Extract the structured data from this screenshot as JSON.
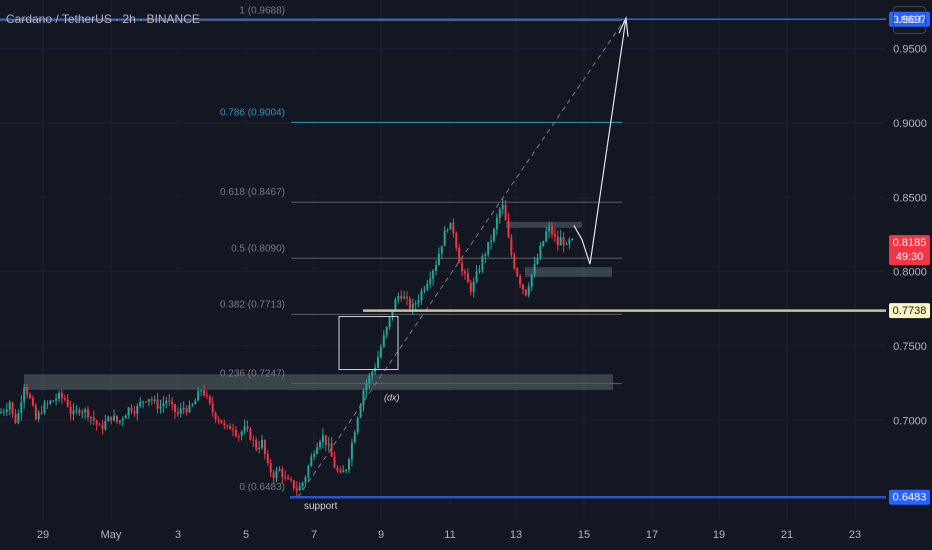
{
  "header": {
    "title": "Cardano / TetherUS · 2h · BINANCE",
    "currency_button": "USDT"
  },
  "chart_data": {
    "type": "candlestick",
    "title": "Cardano / TetherUS · 2h · BINANCE",
    "x_axis": {
      "tick_labels": [
        "29",
        "May",
        "3",
        "5",
        "7",
        "9",
        "11",
        "13",
        "15",
        "17",
        "19",
        "21",
        "23"
      ]
    },
    "y_axis": {
      "range": [
        0.633,
        0.982
      ],
      "tick_labels": [
        0.95,
        0.9,
        0.85,
        0.8,
        0.75,
        0.7
      ],
      "tick_texts": [
        "0.9500",
        "0.9000",
        "0.8500",
        "0.8000",
        "0.7500",
        "0.7000"
      ]
    },
    "price_badges": [
      {
        "name": "top-level",
        "value": 0.9697,
        "text": "0.9697",
        "color": "#2962ff"
      },
      {
        "name": "last-price",
        "value": 0.8185,
        "text": "0.8185",
        "countdown": "49:30",
        "color": "#f23645"
      },
      {
        "name": "resistance-line",
        "value": 0.7738,
        "text": "0.7738",
        "color": "#fff7c2"
      },
      {
        "name": "support-line",
        "value": 0.6483,
        "text": "0.6483",
        "color": "#2962ff"
      }
    ],
    "fibonacci": [
      {
        "ratio": 1,
        "price": 0.9688,
        "label": "1 (0.9688)",
        "color": "#787b86"
      },
      {
        "ratio": 0.786,
        "price": 0.9004,
        "label": "0.786 (0.9004)",
        "color": "#2e96ba"
      },
      {
        "ratio": 0.618,
        "price": 0.8467,
        "label": "0.618 (0.8467)",
        "color": "#787b86"
      },
      {
        "ratio": 0.5,
        "price": 0.809,
        "label": "0.5 (0.8090)",
        "color": "#787b86"
      },
      {
        "ratio": 0.382,
        "price": 0.7713,
        "label": "0.382 (0.7713)",
        "color": "#787b86"
      },
      {
        "ratio": 0.236,
        "price": 0.7247,
        "label": "0.236 (0.7247)",
        "color": "#787b86"
      },
      {
        "ratio": 0,
        "price": 0.6483,
        "label": "0 (0.6483)",
        "color": "#787b86"
      }
    ],
    "annotations": [
      {
        "text": "support",
        "price": 0.643
      },
      {
        "text": "(dx)",
        "price": 0.716
      }
    ],
    "colors": {
      "up": "#26a69a",
      "down": "#f23645",
      "background": "#131722"
    },
    "price_path": [
      [
        0,
        0.705
      ],
      [
        5,
        0.708
      ],
      [
        10,
        0.713
      ],
      [
        14,
        0.698
      ],
      [
        18,
        0.703
      ],
      [
        24,
        0.725
      ],
      [
        30,
        0.714
      ],
      [
        36,
        0.7
      ],
      [
        42,
        0.708
      ],
      [
        50,
        0.712
      ],
      [
        58,
        0.716
      ],
      [
        66,
        0.714
      ],
      [
        72,
        0.703
      ],
      [
        80,
        0.708
      ],
      [
        88,
        0.705
      ],
      [
        94,
        0.7
      ],
      [
        100,
        0.694
      ],
      [
        106,
        0.699
      ],
      [
        112,
        0.703
      ],
      [
        118,
        0.698
      ],
      [
        124,
        0.704
      ],
      [
        130,
        0.709
      ],
      [
        136,
        0.707
      ],
      [
        142,
        0.713
      ],
      [
        148,
        0.716
      ],
      [
        154,
        0.712
      ],
      [
        160,
        0.709
      ],
      [
        166,
        0.714
      ],
      [
        172,
        0.708
      ],
      [
        178,
        0.704
      ],
      [
        184,
        0.709
      ],
      [
        190,
        0.707
      ],
      [
        196,
        0.714
      ],
      [
        202,
        0.722
      ],
      [
        208,
        0.712
      ],
      [
        214,
        0.704
      ],
      [
        220,
        0.701
      ],
      [
        226,
        0.693
      ],
      [
        232,
        0.697
      ],
      [
        238,
        0.69
      ],
      [
        244,
        0.694
      ],
      [
        250,
        0.69
      ],
      [
        256,
        0.682
      ],
      [
        262,
        0.685
      ],
      [
        268,
        0.668
      ],
      [
        274,
        0.663
      ],
      [
        280,
        0.667
      ],
      [
        286,
        0.659
      ],
      [
        292,
        0.657
      ],
      [
        298,
        0.653
      ],
      [
        304,
        0.66
      ],
      [
        310,
        0.672
      ],
      [
        316,
        0.684
      ],
      [
        322,
        0.69
      ],
      [
        328,
        0.683
      ],
      [
        334,
        0.67
      ],
      [
        340,
        0.662
      ],
      [
        346,
        0.668
      ],
      [
        352,
        0.685
      ],
      [
        358,
        0.705
      ],
      [
        364,
        0.722
      ],
      [
        370,
        0.73
      ],
      [
        376,
        0.738
      ],
      [
        382,
        0.752
      ],
      [
        388,
        0.764
      ],
      [
        394,
        0.778
      ],
      [
        400,
        0.786
      ],
      [
        406,
        0.78
      ],
      [
        412,
        0.775
      ],
      [
        418,
        0.782
      ],
      [
        424,
        0.79
      ],
      [
        430,
        0.798
      ],
      [
        436,
        0.806
      ],
      [
        442,
        0.82
      ],
      [
        448,
        0.832
      ],
      [
        454,
        0.827
      ],
      [
        458,
        0.812
      ],
      [
        462,
        0.8
      ],
      [
        466,
        0.795
      ],
      [
        470,
        0.788
      ],
      [
        474,
        0.792
      ],
      [
        478,
        0.8
      ],
      [
        482,
        0.808
      ],
      [
        486,
        0.814
      ],
      [
        490,
        0.82
      ],
      [
        494,
        0.827
      ],
      [
        498,
        0.838
      ],
      [
        502,
        0.846
      ],
      [
        506,
        0.832
      ],
      [
        510,
        0.815
      ],
      [
        514,
        0.805
      ],
      [
        518,
        0.797
      ],
      [
        522,
        0.79
      ],
      [
        526,
        0.786
      ],
      [
        530,
        0.795
      ],
      [
        534,
        0.802
      ],
      [
        538,
        0.81
      ],
      [
        542,
        0.818
      ],
      [
        546,
        0.826
      ],
      [
        550,
        0.829
      ],
      [
        554,
        0.823
      ],
      [
        558,
        0.818
      ],
      [
        562,
        0.824
      ],
      [
        566,
        0.815
      ],
      [
        570,
        0.821
      ],
      [
        574,
        0.8185
      ]
    ]
  }
}
